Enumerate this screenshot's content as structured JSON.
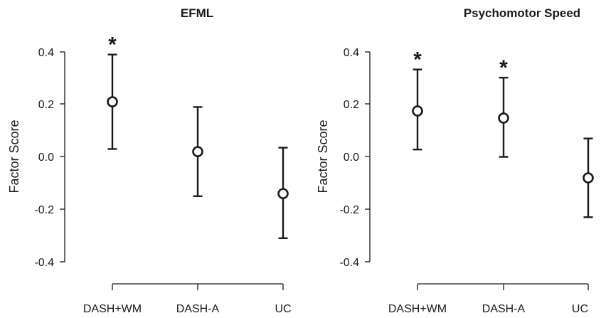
{
  "chart_data": [
    {
      "type": "scatter",
      "title": "EFML",
      "ylabel": "Factor Score",
      "categories": [
        "DASH+WM",
        "DASH-A",
        "UC"
      ],
      "values": [
        0.21,
        0.02,
        -0.14
      ],
      "error_low": [
        0.03,
        -0.15,
        -0.31
      ],
      "error_high": [
        0.39,
        0.19,
        0.035
      ],
      "significance": [
        "*",
        "",
        ""
      ],
      "yticks": [
        "0.4",
        "0.2",
        "0.0",
        "-0.2",
        "-0.4"
      ],
      "ylim": [
        -0.4,
        0.4
      ],
      "grid": false,
      "legend": "none"
    },
    {
      "type": "scatter",
      "title": "Psychomotor Speed",
      "ylabel": "Factor Score",
      "categories": [
        "DASH+WM",
        "DASH-A",
        "UC"
      ],
      "values": [
        0.175,
        0.148,
        -0.08
      ],
      "error_low": [
        0.028,
        0.0,
        -0.23
      ],
      "error_high": [
        0.333,
        0.302,
        0.07
      ],
      "significance": [
        "*",
        "*",
        ""
      ],
      "yticks": [
        "0.4",
        "0.2",
        "0.0",
        "-0.2",
        "-0.4"
      ],
      "ylim": [
        -0.4,
        0.4
      ],
      "grid": false,
      "legend": "none"
    }
  ]
}
